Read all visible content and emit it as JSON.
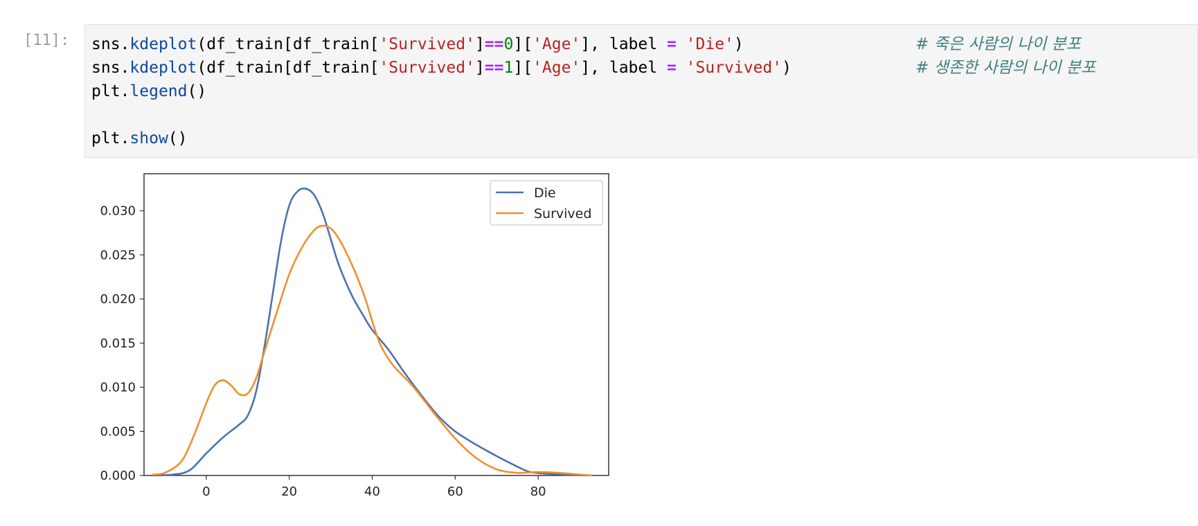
{
  "cell": {
    "prompt": "[11]:",
    "line1": {
      "obj": "sns",
      "fn": "kdeplot",
      "a": "(df_train[df_train[",
      "s1": "'Survived'",
      "b": "]",
      "op": "==",
      "num": "0",
      "c": "][",
      "s2": "'Age'",
      "d": "], label ",
      "eq": "=",
      "e": " ",
      "s3": "'Die'",
      "f": ")",
      "comment": "# 죽은 사람의 나이 분포"
    },
    "line2": {
      "obj": "sns",
      "fn": "kdeplot",
      "a": "(df_train[df_train[",
      "s1": "'Survived'",
      "b": "]",
      "op": "==",
      "num": "1",
      "c": "][",
      "s2": "'Age'",
      "d": "], label ",
      "eq": "=",
      "e": " ",
      "s3": "'Survived'",
      "f": ")",
      "comment": "# 생존한 사람의 나이 분포"
    },
    "line3": {
      "obj": "plt",
      "fn": "legend",
      "rest": "()"
    },
    "line5": {
      "obj": "plt",
      "fn": "show",
      "rest": "()"
    }
  },
  "chart_data": {
    "type": "line",
    "xlim": [
      -15,
      97
    ],
    "ylim": [
      0,
      0.0342
    ],
    "xticks": [
      "0",
      "20",
      "40",
      "60",
      "80"
    ],
    "yticks": [
      "0.000",
      "0.005",
      "0.010",
      "0.015",
      "0.020",
      "0.025",
      "0.030"
    ],
    "legend_position": "top-right",
    "series": [
      {
        "name": "Die",
        "color": "#4c72b0",
        "points": [
          [
            -13,
            0.0
          ],
          [
            -8,
            0.0001
          ],
          [
            -4,
            0.0006
          ],
          [
            0,
            0.0025
          ],
          [
            4,
            0.0043
          ],
          [
            8,
            0.0058
          ],
          [
            10,
            0.0068
          ],
          [
            12,
            0.0095
          ],
          [
            14,
            0.0145
          ],
          [
            16,
            0.0205
          ],
          [
            18,
            0.0265
          ],
          [
            20,
            0.0306
          ],
          [
            22,
            0.0322
          ],
          [
            24,
            0.0325
          ],
          [
            26,
            0.0318
          ],
          [
            28,
            0.0298
          ],
          [
            30,
            0.0268
          ],
          [
            32,
            0.0238
          ],
          [
            35,
            0.0205
          ],
          [
            38,
            0.018
          ],
          [
            40,
            0.0165
          ],
          [
            44,
            0.0142
          ],
          [
            48,
            0.0115
          ],
          [
            52,
            0.009
          ],
          [
            56,
            0.0067
          ],
          [
            60,
            0.005
          ],
          [
            65,
            0.0035
          ],
          [
            70,
            0.0022
          ],
          [
            75,
            0.001
          ],
          [
            78,
            0.0004
          ],
          [
            82,
            0.0002
          ],
          [
            86,
            0.0001
          ],
          [
            92,
            0.0
          ]
        ]
      },
      {
        "name": "Survived",
        "color": "#f28e2b",
        "points": [
          [
            -13,
            0.0001
          ],
          [
            -10,
            0.0003
          ],
          [
            -6,
            0.0016
          ],
          [
            -3,
            0.0045
          ],
          [
            0,
            0.0082
          ],
          [
            2,
            0.0102
          ],
          [
            4,
            0.0108
          ],
          [
            6,
            0.0102
          ],
          [
            8,
            0.0092
          ],
          [
            10,
            0.0093
          ],
          [
            12,
            0.011
          ],
          [
            14,
            0.014
          ],
          [
            17,
            0.0185
          ],
          [
            20,
            0.0228
          ],
          [
            23,
            0.0258
          ],
          [
            26,
            0.0278
          ],
          [
            28,
            0.0283
          ],
          [
            30,
            0.028
          ],
          [
            32,
            0.0268
          ],
          [
            35,
            0.024
          ],
          [
            38,
            0.0205
          ],
          [
            40,
            0.0175
          ],
          [
            42,
            0.0148
          ],
          [
            45,
            0.0125
          ],
          [
            50,
            0.01
          ],
          [
            55,
            0.007
          ],
          [
            60,
            0.0042
          ],
          [
            65,
            0.002
          ],
          [
            70,
            0.0007
          ],
          [
            75,
            0.0003
          ],
          [
            80,
            0.0004
          ],
          [
            85,
            0.0003
          ],
          [
            90,
            0.0001
          ],
          [
            93,
            0.0
          ]
        ]
      }
    ]
  }
}
